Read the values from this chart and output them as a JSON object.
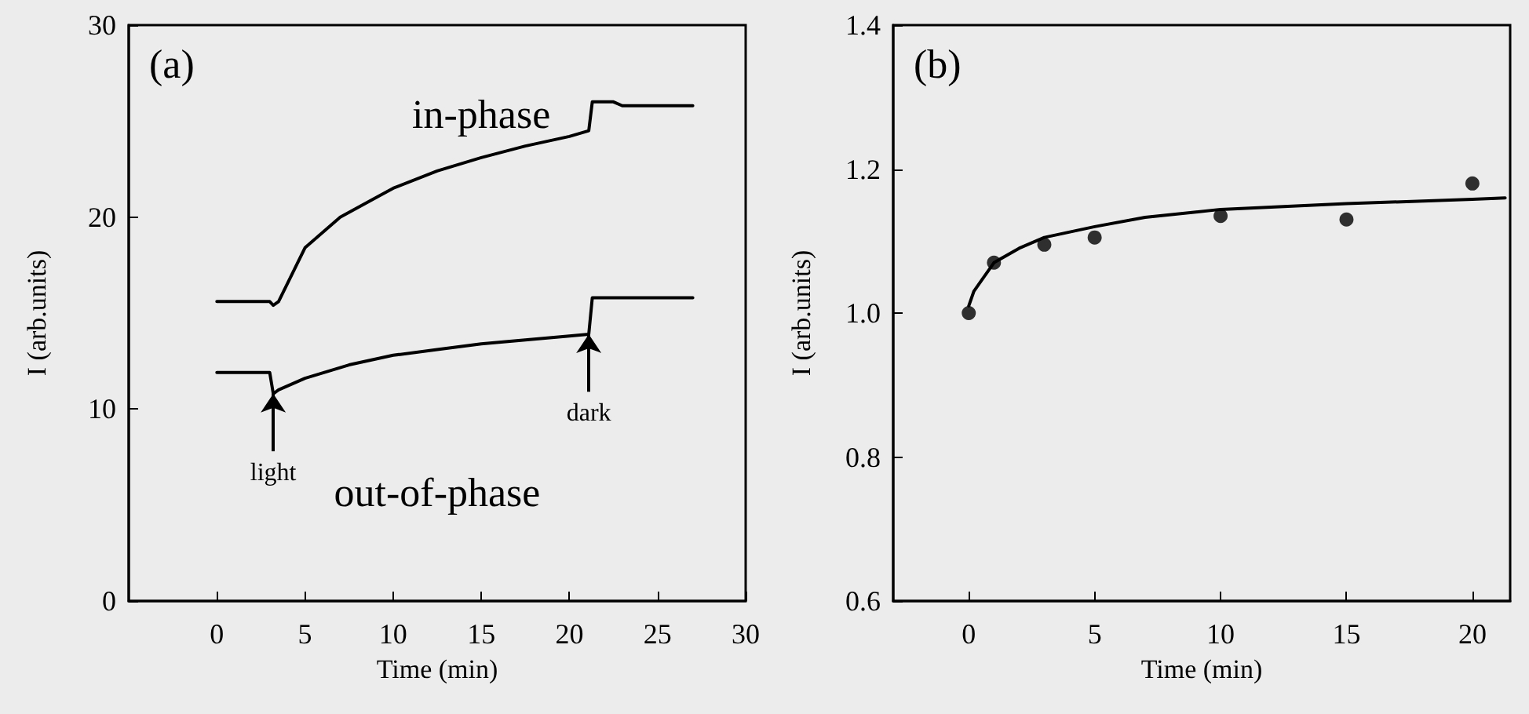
{
  "chart_data": [
    {
      "type": "line",
      "xlabel": "Time (min)",
      "ylabel": "I (arb.units)",
      "xlim": [
        -5,
        30
      ],
      "xticks": [
        0,
        5,
        10,
        15,
        20,
        25,
        30
      ],
      "ylim": [
        0,
        30
      ],
      "yticks": [
        0,
        10,
        20,
        30
      ],
      "grid": false,
      "legend": false,
      "line_style": "solid",
      "annotations": [
        "(a)",
        {
          "text": "light",
          "x": 3.2,
          "y": 10.8
        },
        {
          "text": "dark",
          "x": 21.1,
          "y": 13.9
        }
      ],
      "series": [
        {
          "name": "in-phase",
          "color": "#000000",
          "x": [
            0,
            3,
            3.2,
            3.5,
            5,
            7,
            10,
            12.5,
            15,
            17.5,
            20,
            21.1,
            21.3,
            22.5,
            23,
            27
          ],
          "values": [
            15.6,
            15.6,
            15.4,
            15.6,
            18.4,
            20,
            21.5,
            22.4,
            23.1,
            23.7,
            24.2,
            24.5,
            26,
            26,
            25.8,
            25.8
          ]
        },
        {
          "name": "out-of-phase",
          "color": "#000000",
          "x": [
            0,
            3,
            3.2,
            3.5,
            5,
            7.5,
            10,
            12.5,
            15,
            17.5,
            20,
            21.1,
            21.3,
            27
          ],
          "values": [
            11.9,
            11.9,
            10.8,
            11,
            11.6,
            12.3,
            12.8,
            13.1,
            13.4,
            13.6,
            13.8,
            13.9,
            15.8,
            15.8
          ]
        }
      ]
    },
    {
      "type": "scatter",
      "xlabel": "Time (min)",
      "ylabel": "I (arb.units)",
      "xlim": [
        -3,
        21.5
      ],
      "xticks": [
        0,
        5,
        10,
        15,
        20
      ],
      "ylim": [
        0.6,
        1.4
      ],
      "yticks": [
        {
          "value": 0.6,
          "label": "0.6"
        },
        {
          "value": 0.8,
          "label": "0.8"
        },
        {
          "value": 1.0,
          "label": "1.0"
        },
        {
          "value": 1.2,
          "label": "1.2"
        },
        {
          "value": 1.4,
          "label": "1.4"
        }
      ],
      "grid": false,
      "legend": false,
      "annotations": [
        "(b)"
      ],
      "series": [
        {
          "marker": "circle",
          "color": "#000000",
          "x": [
            0,
            1,
            3,
            5,
            10,
            15,
            20
          ],
          "values": [
            1.0,
            1.07,
            1.095,
            1.105,
            1.135,
            1.13,
            1.18
          ]
        },
        {
          "type": "line",
          "marker": "none",
          "line_style": "solid",
          "color": "#000000",
          "x": [
            0,
            0.2,
            0.5,
            1,
            2,
            3,
            5,
            7,
            10,
            15,
            20,
            21.3
          ],
          "values": [
            1.01,
            1.03,
            1.045,
            1.07,
            1.09,
            1.105,
            1.12,
            1.133,
            1.144,
            1.152,
            1.158,
            1.16
          ]
        }
      ]
    }
  ]
}
